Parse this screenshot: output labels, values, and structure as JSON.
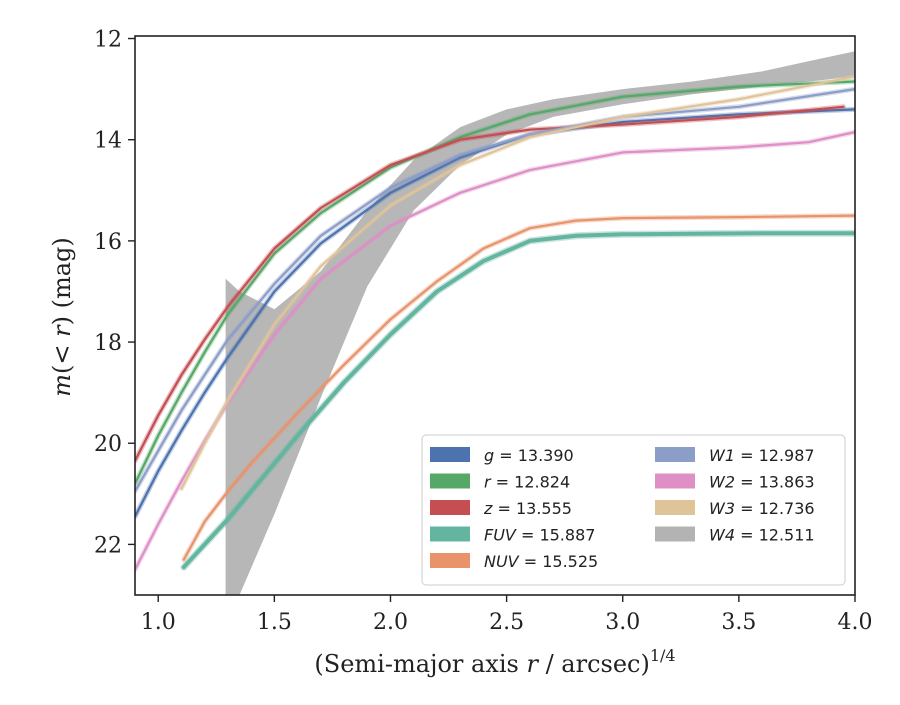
{
  "chart_data": {
    "type": "line",
    "xlabel": "(Semi-major axis r / arcsec)^{1/4}",
    "xlabel_parts": {
      "pre": "(Semi-major axis ",
      "var": "r",
      "post": " / arcsec)",
      "sup": "1/4"
    },
    "ylabel": "m(< r) (mag)",
    "ylabel_parts": {
      "m": "m",
      "open": "(",
      "lt": "< ",
      "r": "r",
      "close": ")",
      "unit": " (mag)"
    },
    "xlim": [
      0.9,
      4.0
    ],
    "ylim": [
      23.0,
      11.95
    ],
    "y_inverted": true,
    "x_ticks": [
      "1.0",
      "1.5",
      "2.0",
      "2.5",
      "3.0",
      "3.5",
      "4.0"
    ],
    "y_ticks": [
      "12",
      "14",
      "16",
      "18",
      "20",
      "22"
    ],
    "grid": false,
    "legend_placement": "lower-right",
    "legend_columns": 2,
    "series": [
      {
        "name": "g = 13.390",
        "label_var": "g",
        "label_value": "13.390",
        "color": "#4c72b0",
        "x": [
          0.9,
          1.0,
          1.1,
          1.2,
          1.3,
          1.5,
          1.7,
          2.0,
          2.3,
          2.6,
          3.0,
          3.5,
          4.0
        ],
        "y": [
          21.45,
          20.55,
          19.75,
          19.0,
          18.3,
          17.0,
          16.05,
          15.05,
          14.35,
          13.9,
          13.65,
          13.5,
          13.4
        ]
      },
      {
        "name": "r = 12.824",
        "label_var": "r",
        "label_value": "12.824",
        "color": "#55a868",
        "x": [
          0.9,
          1.0,
          1.1,
          1.2,
          1.3,
          1.5,
          1.7,
          2.0,
          2.3,
          2.6,
          3.0,
          3.5,
          4.0
        ],
        "y": [
          20.8,
          19.85,
          19.0,
          18.2,
          17.45,
          16.25,
          15.45,
          14.55,
          13.95,
          13.5,
          13.15,
          12.95,
          12.85
        ]
      },
      {
        "name": "z = 13.555",
        "label_var": "z",
        "label_value": "13.555",
        "color": "#c44e52",
        "x": [
          0.9,
          1.0,
          1.1,
          1.2,
          1.3,
          1.5,
          1.7,
          2.0,
          2.3,
          2.6,
          3.0,
          3.5,
          3.95
        ],
        "y": [
          20.35,
          19.45,
          18.65,
          17.95,
          17.3,
          16.15,
          15.35,
          14.5,
          14.0,
          13.8,
          13.7,
          13.55,
          13.35
        ]
      },
      {
        "name": "FUV = 15.887",
        "label_var": "FUV",
        "label_value": "15.887",
        "color": "#64b5a0",
        "x": [
          1.11,
          1.2,
          1.3,
          1.4,
          1.6,
          1.8,
          2.0,
          2.2,
          2.4,
          2.6,
          2.8,
          3.0,
          3.3,
          3.6,
          4.0
        ],
        "y": [
          22.45,
          22.0,
          21.5,
          20.95,
          19.85,
          18.8,
          17.85,
          17.0,
          16.4,
          16.0,
          15.9,
          15.87,
          15.86,
          15.85,
          15.85
        ]
      },
      {
        "name": "NUV = 15.525",
        "label_var": "NUV",
        "label_value": "15.525",
        "color": "#e8936a",
        "x": [
          1.11,
          1.2,
          1.3,
          1.4,
          1.6,
          1.8,
          2.0,
          2.2,
          2.4,
          2.6,
          2.8,
          3.0,
          3.5,
          4.0
        ],
        "y": [
          22.3,
          21.55,
          20.95,
          20.4,
          19.4,
          18.45,
          17.55,
          16.8,
          16.15,
          15.75,
          15.6,
          15.55,
          15.53,
          15.5
        ]
      },
      {
        "name": "W1 = 12.987",
        "label_var": "W1",
        "label_value": "12.987",
        "color": "#8c9dc7",
        "x": [
          0.9,
          1.0,
          1.1,
          1.2,
          1.3,
          1.5,
          1.7,
          2.0,
          2.3,
          2.6,
          3.0,
          3.5,
          4.0
        ],
        "y": [
          20.95,
          20.15,
          19.35,
          18.65,
          17.95,
          16.85,
          15.9,
          14.95,
          14.3,
          13.9,
          13.55,
          13.35,
          13.0
        ]
      },
      {
        "name": "W2 = 13.863",
        "label_var": "W2",
        "label_value": "13.863",
        "color": "#dd8fc6",
        "x": [
          0.9,
          1.0,
          1.1,
          1.2,
          1.3,
          1.5,
          1.7,
          2.0,
          2.3,
          2.6,
          3.0,
          3.5,
          3.8,
          4.0
        ],
        "y": [
          22.5,
          21.6,
          20.75,
          19.95,
          19.2,
          17.85,
          16.75,
          15.7,
          15.05,
          14.6,
          14.25,
          14.15,
          14.05,
          13.85
        ]
      },
      {
        "name": "W3 = 12.736",
        "label_var": "W3",
        "label_value": "12.736",
        "color": "#dfc49a",
        "x": [
          1.1,
          1.2,
          1.3,
          1.5,
          1.7,
          2.0,
          2.3,
          2.6,
          3.0,
          3.5,
          4.0
        ],
        "y": [
          20.9,
          20.0,
          19.15,
          17.65,
          16.5,
          15.3,
          14.5,
          13.95,
          13.55,
          13.2,
          12.75
        ]
      },
      {
        "name": "W4 = 12.511",
        "label_var": "W4",
        "label_value": "12.511",
        "color": "#b3b3b3",
        "x": [
          1.29,
          1.35,
          1.5,
          1.7,
          1.9,
          2.1,
          2.3,
          2.5,
          2.7,
          3.0,
          3.3,
          3.6,
          3.8,
          4.0
        ],
        "y": [
          23.0,
          20.8,
          19.6,
          17.8,
          16.1,
          14.9,
          14.1,
          13.6,
          13.35,
          13.15,
          13.0,
          12.85,
          12.7,
          12.55
        ],
        "band_upper": [
          16.75,
          17.0,
          17.35,
          16.6,
          15.4,
          14.4,
          13.75,
          13.4,
          13.2,
          13.0,
          12.85,
          12.65,
          12.45,
          12.25
        ],
        "band_lower": [
          23.0,
          23.0,
          21.4,
          19.1,
          16.9,
          15.4,
          14.5,
          13.9,
          13.55,
          13.3,
          13.1,
          12.95,
          12.85,
          12.75
        ]
      }
    ]
  }
}
